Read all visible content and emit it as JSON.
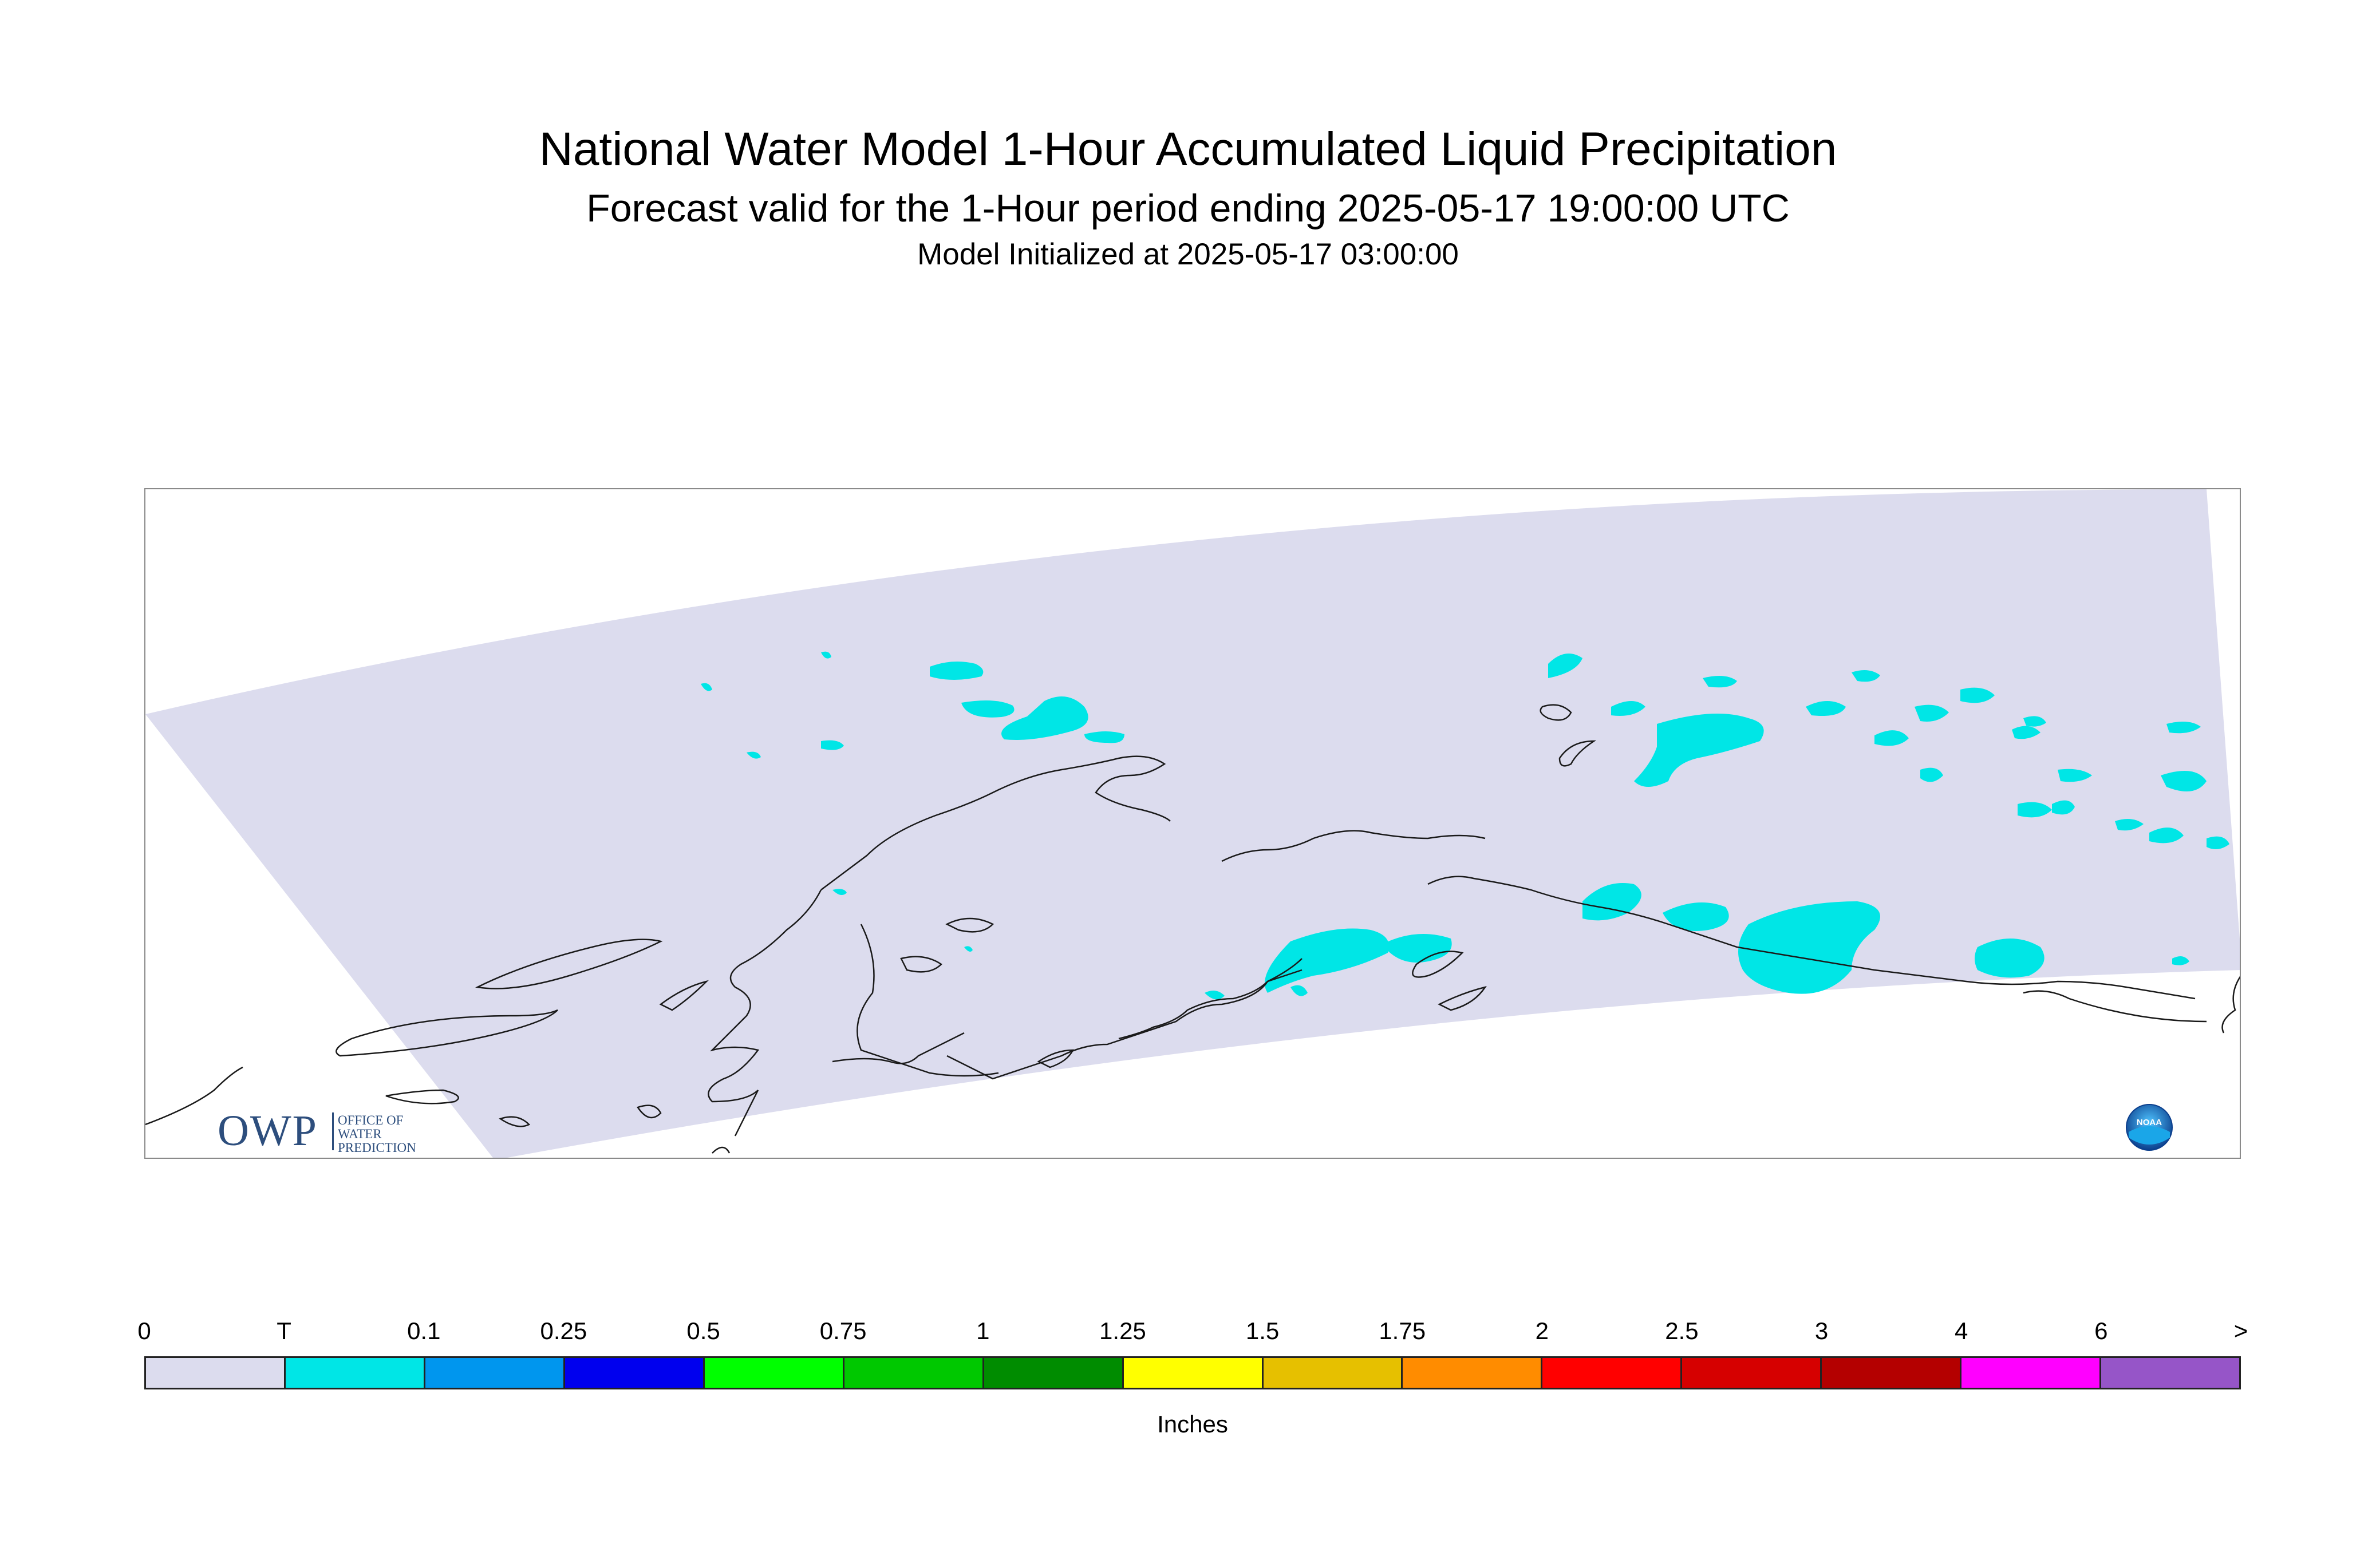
{
  "title": "National Water Model 1-Hour Accumulated Liquid Precipitation",
  "subtitle": "Forecast valid for the 1-Hour period ending 2025-05-17 19:00:00 UTC",
  "init_line": "Model Initialized at 2025-05-17 03:00:00",
  "logos": {
    "owp_big": "OWP",
    "owp_line1": "OFFICE OF",
    "owp_line2": "WATER",
    "owp_line3": "PREDICTION",
    "noaa": "NOAA"
  },
  "legend": {
    "units": "Inches",
    "tick_labels": [
      "0",
      "T",
      "0.1",
      "0.25",
      "0.5",
      "0.75",
      "1",
      "1.25",
      "1.5",
      "1.75",
      "2",
      "2.5",
      "3",
      "4",
      "6",
      ">"
    ],
    "colors": [
      "#dcdcee",
      "#00e6e6",
      "#0096ee",
      "#0000ee",
      "#00ff00",
      "#00c800",
      "#008c00",
      "#ffff00",
      "#e6c000",
      "#ff8c00",
      "#ff0000",
      "#d60000",
      "#b40000",
      "#ff00ff",
      "#9655c8"
    ]
  },
  "map": {
    "domain_fill": "#dcdcee",
    "precip_color": "#00e6e6",
    "coastline_color": "#1a1a1a"
  }
}
